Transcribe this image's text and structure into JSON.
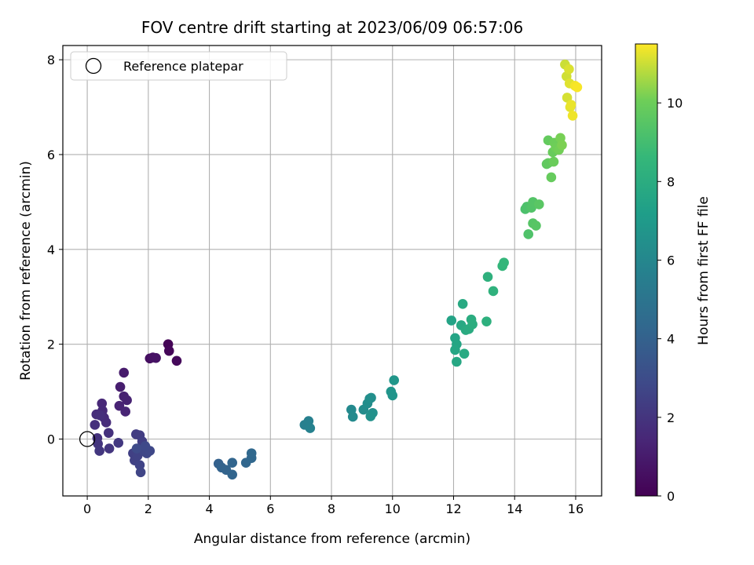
{
  "chart_data": {
    "type": "scatter",
    "title": "FOV centre drift starting at 2023/06/09 06:57:06",
    "xlabel": "Angular distance from reference (arcmin)",
    "ylabel": "Rotation from reference (arcmin)",
    "xlim": [
      -0.8,
      16.85
    ],
    "ylim": [
      -1.2,
      8.3
    ],
    "xticks": [
      0,
      2,
      4,
      6,
      8,
      10,
      12,
      14,
      16
    ],
    "yticks": [
      0,
      2,
      4,
      6,
      8
    ],
    "grid": true,
    "legend_position": "top-left",
    "legend_entries": [
      "Reference platepar"
    ],
    "reference_point": {
      "x": 0,
      "y": 0
    },
    "colorbar": {
      "label": "Hours from first FF file",
      "range": [
        0,
        11.5
      ],
      "ticks": [
        0,
        2,
        4,
        6,
        8,
        10
      ],
      "colormap": "viridis"
    },
    "points": [
      [
        2.65,
        2.0,
        0.1
      ],
      [
        2.68,
        1.86,
        0.2
      ],
      [
        2.93,
        1.65,
        0.3
      ],
      [
        2.05,
        1.7,
        0.5
      ],
      [
        2.15,
        1.72,
        0.6
      ],
      [
        2.25,
        1.71,
        0.65
      ],
      [
        1.2,
        1.4,
        1.0
      ],
      [
        1.08,
        1.1,
        1.1
      ],
      [
        1.2,
        0.9,
        1.2
      ],
      [
        1.3,
        0.82,
        1.25
      ],
      [
        1.05,
        0.7,
        1.3
      ],
      [
        1.25,
        0.58,
        1.35
      ],
      [
        0.48,
        0.75,
        1.5
      ],
      [
        0.5,
        0.6,
        1.55
      ],
      [
        0.55,
        0.45,
        1.6
      ],
      [
        0.62,
        0.35,
        1.65
      ],
      [
        0.3,
        0.52,
        1.7
      ],
      [
        0.42,
        0.5,
        1.75
      ],
      [
        0.25,
        0.3,
        1.8
      ],
      [
        0.7,
        0.13,
        1.85
      ],
      [
        0.33,
        0.02,
        1.9
      ],
      [
        0.35,
        -0.1,
        2.0
      ],
      [
        0.72,
        -0.2,
        2.05
      ],
      [
        0.4,
        -0.25,
        2.1
      ],
      [
        1.02,
        -0.08,
        2.15
      ],
      [
        1.6,
        0.1,
        2.3
      ],
      [
        1.72,
        0.08,
        2.35
      ],
      [
        1.8,
        -0.05,
        2.4
      ],
      [
        1.5,
        -0.3,
        2.45
      ],
      [
        1.55,
        -0.45,
        2.5
      ],
      [
        1.65,
        -0.35,
        2.55
      ],
      [
        1.72,
        -0.55,
        2.6
      ],
      [
        1.75,
        -0.7,
        2.65
      ],
      [
        1.85,
        -0.25,
        2.7
      ],
      [
        1.95,
        -0.3,
        2.75
      ],
      [
        2.05,
        -0.25,
        2.8
      ],
      [
        1.9,
        -0.15,
        2.85
      ],
      [
        1.62,
        -0.2,
        2.9
      ],
      [
        4.3,
        -0.52,
        4.0
      ],
      [
        4.4,
        -0.6,
        4.05
      ],
      [
        4.55,
        -0.65,
        4.1
      ],
      [
        4.75,
        -0.75,
        4.15
      ],
      [
        4.75,
        -0.5,
        4.2
      ],
      [
        5.2,
        -0.5,
        4.25
      ],
      [
        5.38,
        -0.4,
        4.3
      ],
      [
        5.38,
        -0.3,
        4.35
      ],
      [
        7.12,
        0.3,
        5.6
      ],
      [
        7.25,
        0.38,
        5.65
      ],
      [
        7.3,
        0.23,
        5.7
      ],
      [
        8.65,
        0.62,
        6.1
      ],
      [
        8.7,
        0.47,
        6.15
      ],
      [
        9.05,
        0.62,
        6.25
      ],
      [
        9.18,
        0.75,
        6.3
      ],
      [
        9.25,
        0.85,
        6.35
      ],
      [
        9.3,
        0.87,
        6.4
      ],
      [
        9.35,
        0.55,
        6.45
      ],
      [
        9.28,
        0.48,
        6.5
      ],
      [
        9.95,
        1.0,
        6.7
      ],
      [
        10.0,
        0.92,
        6.75
      ],
      [
        10.05,
        1.24,
        6.8
      ],
      [
        11.93,
        2.5,
        7.5
      ],
      [
        12.05,
        2.13,
        7.55
      ],
      [
        12.1,
        2.0,
        7.6
      ],
      [
        12.05,
        1.88,
        7.65
      ],
      [
        12.1,
        1.63,
        7.7
      ],
      [
        12.25,
        2.4,
        7.75
      ],
      [
        12.3,
        2.85,
        7.8
      ],
      [
        12.35,
        1.8,
        7.85
      ],
      [
        12.4,
        2.3,
        7.9
      ],
      [
        12.5,
        2.32,
        7.95
      ],
      [
        12.58,
        2.52,
        8.0
      ],
      [
        12.62,
        2.42,
        8.05
      ],
      [
        13.08,
        2.48,
        8.2
      ],
      [
        13.12,
        3.42,
        8.25
      ],
      [
        13.3,
        3.12,
        8.3
      ],
      [
        13.6,
        3.65,
        8.5
      ],
      [
        13.65,
        3.72,
        8.55
      ],
      [
        14.35,
        4.85,
        9.2
      ],
      [
        14.4,
        4.9,
        9.25
      ],
      [
        14.45,
        4.32,
        9.3
      ],
      [
        14.55,
        4.88,
        9.35
      ],
      [
        14.6,
        5.0,
        9.4
      ],
      [
        14.6,
        4.55,
        9.45
      ],
      [
        14.7,
        4.5,
        9.5
      ],
      [
        14.8,
        4.95,
        9.55
      ],
      [
        15.05,
        5.8,
        9.7
      ],
      [
        15.1,
        5.82,
        9.75
      ],
      [
        15.1,
        6.3,
        9.8
      ],
      [
        15.2,
        5.52,
        9.85
      ],
      [
        15.25,
        6.05,
        9.9
      ],
      [
        15.28,
        5.85,
        9.95
      ],
      [
        15.3,
        6.25,
        10.0
      ],
      [
        15.35,
        6.15,
        10.05
      ],
      [
        15.45,
        6.1,
        10.1
      ],
      [
        15.5,
        6.35,
        10.15
      ],
      [
        15.55,
        6.2,
        10.2
      ],
      [
        15.65,
        7.9,
        11.0
      ],
      [
        15.7,
        7.65,
        11.05
      ],
      [
        15.72,
        7.2,
        11.1
      ],
      [
        15.78,
        7.8,
        11.15
      ],
      [
        15.8,
        7.5,
        11.2
      ],
      [
        15.82,
        7.0,
        11.25
      ],
      [
        15.85,
        7.05,
        11.3
      ],
      [
        15.9,
        6.82,
        11.35
      ],
      [
        15.98,
        7.45,
        11.4
      ],
      [
        16.05,
        7.42,
        11.45
      ]
    ]
  }
}
